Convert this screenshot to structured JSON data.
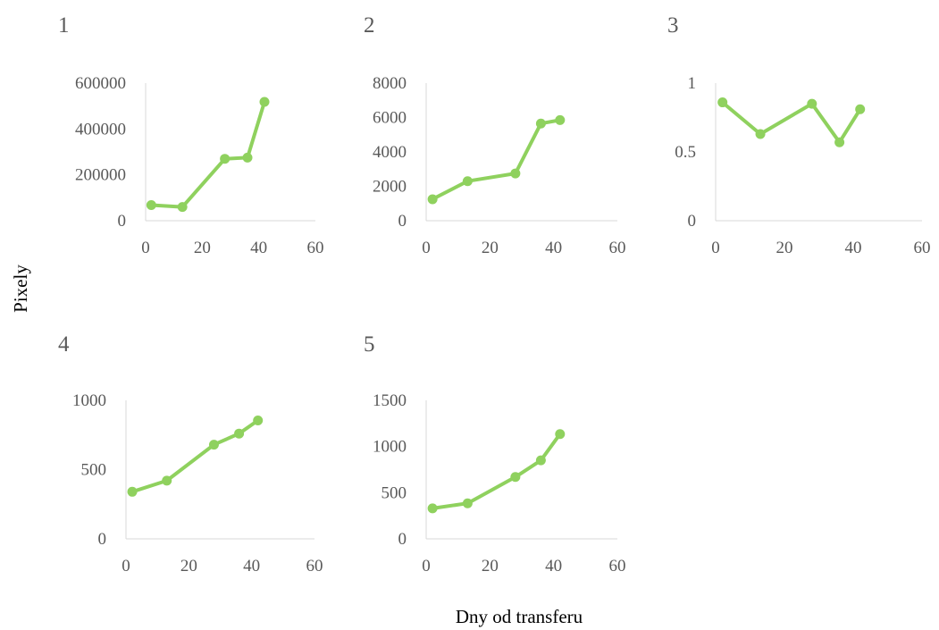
{
  "ylabel": "Pixely",
  "xlabel": "Dny od transferu",
  "colors": {
    "series": "#8fd15e",
    "axis": "#d9d9d9",
    "tick_text": "#595959"
  },
  "chart_data": [
    {
      "type": "line",
      "title": "1",
      "x": [
        2,
        13,
        28,
        36,
        42
      ],
      "values": [
        68000,
        60000,
        270000,
        275000,
        518000
      ],
      "xlim": [
        0,
        60
      ],
      "ylim": [
        0,
        600000
      ],
      "xticks": [
        "0",
        "20",
        "40",
        "60"
      ],
      "yticks": [
        "0",
        "200000",
        "400000",
        "600000"
      ],
      "grid": false,
      "legend": "none"
    },
    {
      "type": "line",
      "title": "2",
      "x": [
        2,
        13,
        28,
        36,
        42
      ],
      "values": [
        1250,
        2300,
        2750,
        5650,
        5850
      ],
      "xlim": [
        0,
        60
      ],
      "ylim": [
        0,
        8000
      ],
      "xticks": [
        "0",
        "20",
        "40",
        "60"
      ],
      "yticks": [
        "0",
        "2000",
        "4000",
        "6000",
        "8000"
      ],
      "grid": false,
      "legend": "none"
    },
    {
      "type": "line",
      "title": "3",
      "x": [
        2,
        13,
        28,
        36,
        42
      ],
      "values": [
        0.86,
        0.63,
        0.85,
        0.57,
        0.81
      ],
      "xlim": [
        0,
        60
      ],
      "ylim": [
        0,
        1
      ],
      "xticks": [
        "0",
        "20",
        "40",
        "60"
      ],
      "yticks": [
        "0",
        "0.5",
        "1"
      ],
      "grid": false,
      "legend": "none"
    },
    {
      "type": "line",
      "title": "4",
      "x": [
        2,
        13,
        28,
        36,
        42
      ],
      "values": [
        340,
        420,
        680,
        760,
        855
      ],
      "xlim": [
        0,
        60
      ],
      "ylim": [
        0,
        1000
      ],
      "xticks": [
        "0",
        "20",
        "40",
        "60"
      ],
      "yticks": [
        "0",
        "500",
        "1000"
      ],
      "grid": false,
      "legend": "none"
    },
    {
      "type": "line",
      "title": "5",
      "x": [
        2,
        13,
        28,
        36,
        42
      ],
      "values": [
        330,
        385,
        670,
        850,
        1135
      ],
      "xlim": [
        0,
        60
      ],
      "ylim": [
        0,
        1500
      ],
      "xticks": [
        "0",
        "20",
        "40",
        "60"
      ],
      "yticks": [
        "0",
        "500",
        "1000",
        "1500"
      ],
      "grid": false,
      "legend": "none"
    }
  ]
}
